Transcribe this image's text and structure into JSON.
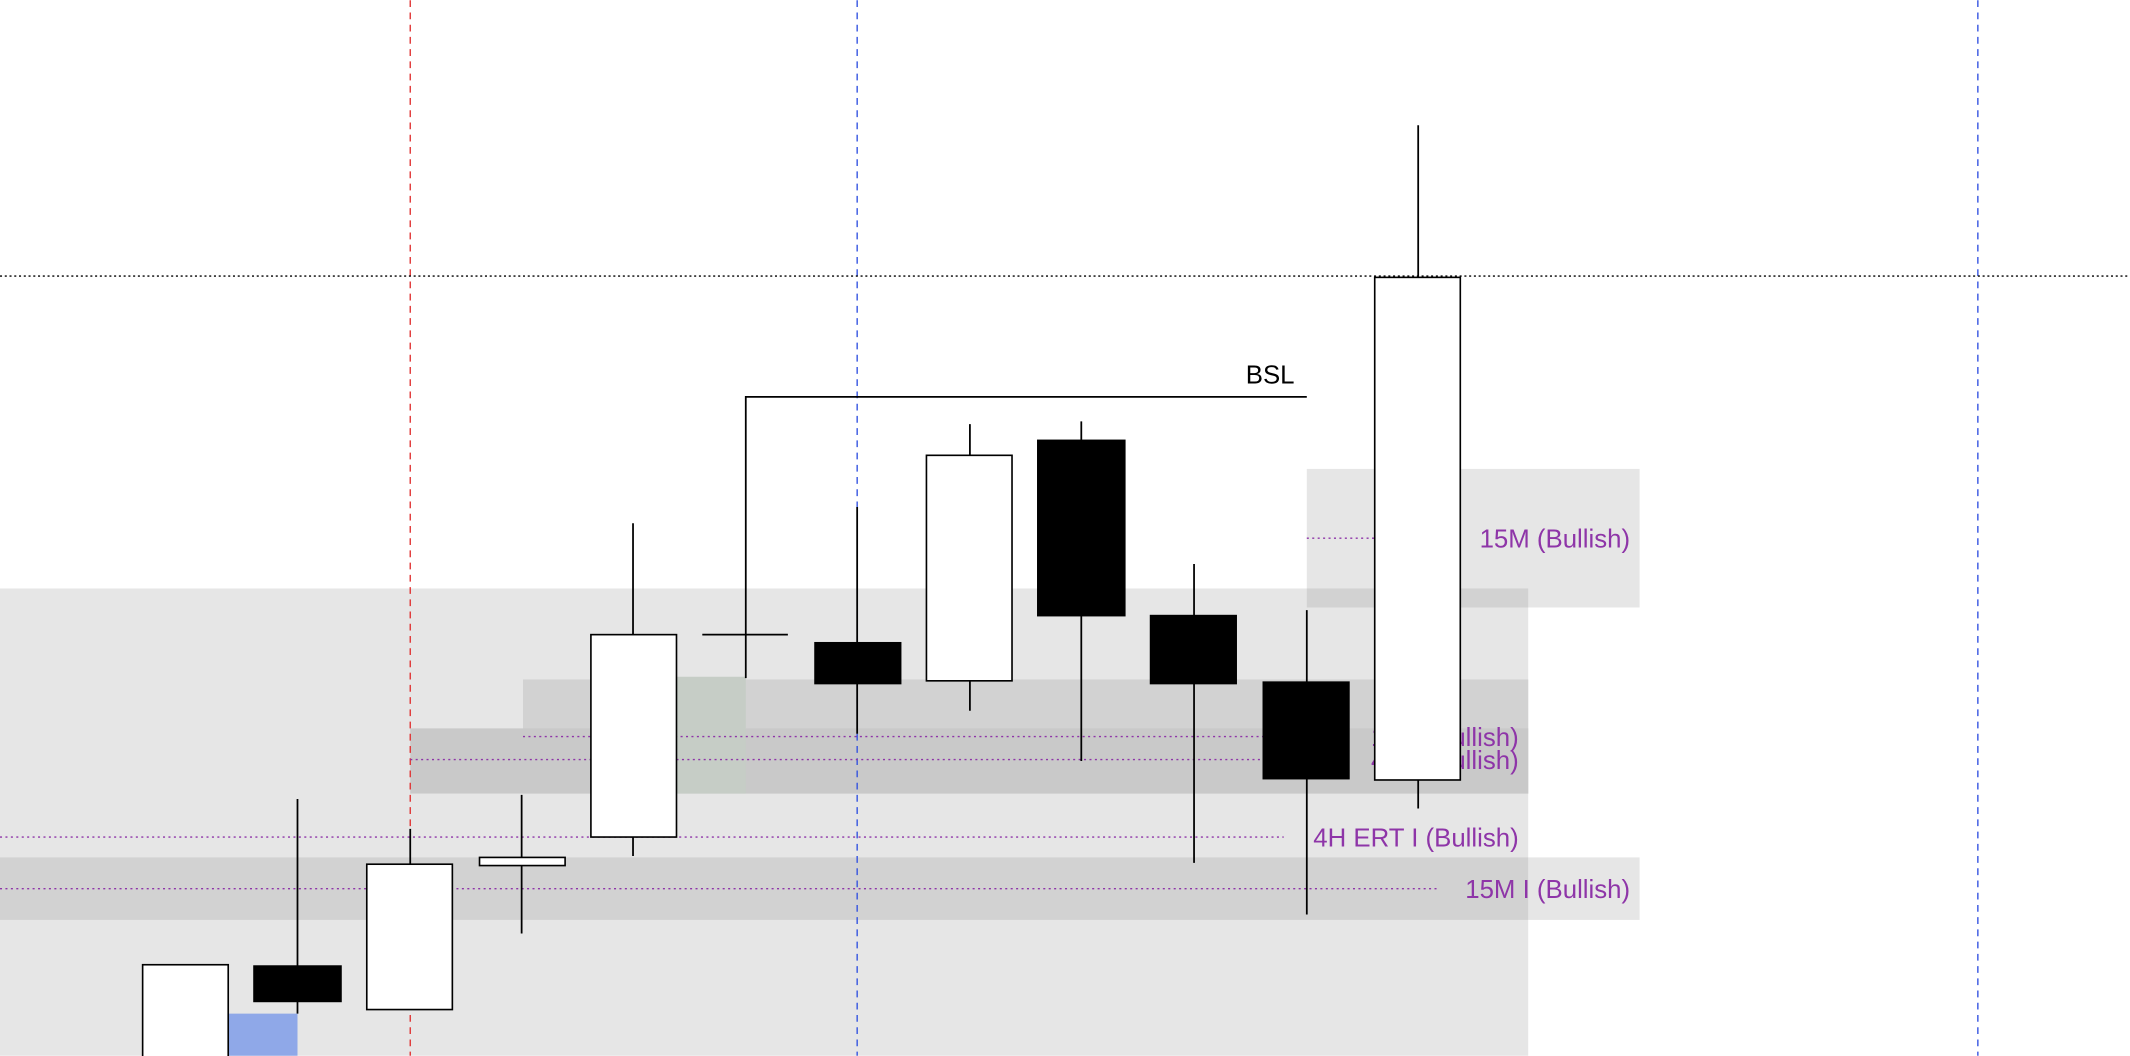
{
  "labels": {
    "bsl": "BSL",
    "top_zone": "15M (Bullish)",
    "hidden_1": "1H I (Bullish)",
    "hidden_2": "4H I (Bullish)",
    "ert": "4H ERT I (Bullish)",
    "bottom_zone": "15M I (Bullish)"
  }
}
